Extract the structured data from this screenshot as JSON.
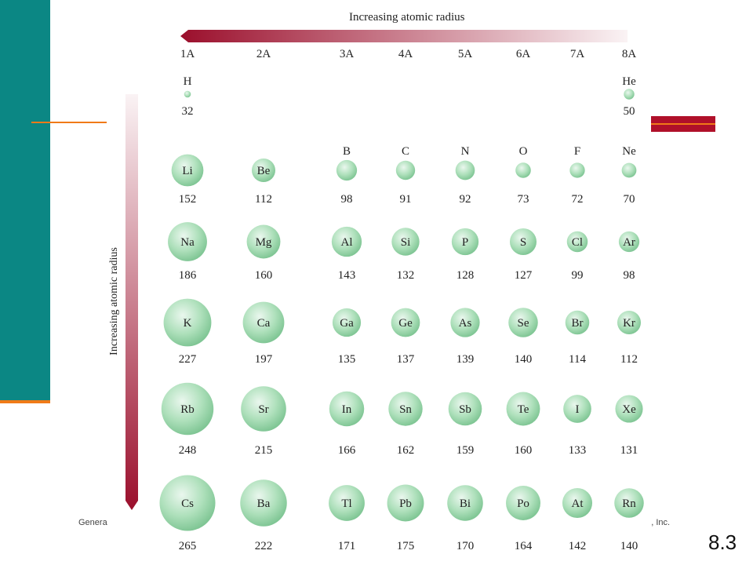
{
  "titles": {
    "top": "Increasing atomic radius",
    "left": "Increasing atomic radius"
  },
  "footer": {
    "left_fragment": "Genera",
    "right_fragment": "on, Inc.",
    "slide_number": "8.3"
  },
  "groups": [
    "1A",
    "2A",
    "3A",
    "4A",
    "5A",
    "6A",
    "7A",
    "8A"
  ],
  "elements": [
    {
      "symbol": "H",
      "radius": 32,
      "row": 1,
      "col": 1
    },
    {
      "symbol": "He",
      "radius": 50,
      "row": 1,
      "col": 8
    },
    {
      "symbol": "Li",
      "radius": 152,
      "row": 2,
      "col": 1
    },
    {
      "symbol": "Be",
      "radius": 112,
      "row": 2,
      "col": 2
    },
    {
      "symbol": "B",
      "radius": 98,
      "row": 2,
      "col": 3
    },
    {
      "symbol": "C",
      "radius": 91,
      "row": 2,
      "col": 4
    },
    {
      "symbol": "N",
      "radius": 92,
      "row": 2,
      "col": 5
    },
    {
      "symbol": "O",
      "radius": 73,
      "row": 2,
      "col": 6
    },
    {
      "symbol": "F",
      "radius": 72,
      "row": 2,
      "col": 7
    },
    {
      "symbol": "Ne",
      "radius": 70,
      "row": 2,
      "col": 8
    },
    {
      "symbol": "Na",
      "radius": 186,
      "row": 3,
      "col": 1
    },
    {
      "symbol": "Mg",
      "radius": 160,
      "row": 3,
      "col": 2
    },
    {
      "symbol": "Al",
      "radius": 143,
      "row": 3,
      "col": 3
    },
    {
      "symbol": "Si",
      "radius": 132,
      "row": 3,
      "col": 4
    },
    {
      "symbol": "P",
      "radius": 128,
      "row": 3,
      "col": 5
    },
    {
      "symbol": "S",
      "radius": 127,
      "row": 3,
      "col": 6
    },
    {
      "symbol": "Cl",
      "radius": 99,
      "row": 3,
      "col": 7
    },
    {
      "symbol": "Ar",
      "radius": 98,
      "row": 3,
      "col": 8
    },
    {
      "symbol": "K",
      "radius": 227,
      "row": 4,
      "col": 1
    },
    {
      "symbol": "Ca",
      "radius": 197,
      "row": 4,
      "col": 2
    },
    {
      "symbol": "Ga",
      "radius": 135,
      "row": 4,
      "col": 3
    },
    {
      "symbol": "Ge",
      "radius": 137,
      "row": 4,
      "col": 4
    },
    {
      "symbol": "As",
      "radius": 139,
      "row": 4,
      "col": 5
    },
    {
      "symbol": "Se",
      "radius": 140,
      "row": 4,
      "col": 6
    },
    {
      "symbol": "Br",
      "radius": 114,
      "row": 4,
      "col": 7
    },
    {
      "symbol": "Kr",
      "radius": 112,
      "row": 4,
      "col": 8
    },
    {
      "symbol": "Rb",
      "radius": 248,
      "row": 5,
      "col": 1
    },
    {
      "symbol": "Sr",
      "radius": 215,
      "row": 5,
      "col": 2
    },
    {
      "symbol": "In",
      "radius": 166,
      "row": 5,
      "col": 3
    },
    {
      "symbol": "Sn",
      "radius": 162,
      "row": 5,
      "col": 4
    },
    {
      "symbol": "Sb",
      "radius": 159,
      "row": 5,
      "col": 5
    },
    {
      "symbol": "Te",
      "radius": 160,
      "row": 5,
      "col": 6
    },
    {
      "symbol": "I",
      "radius": 133,
      "row": 5,
      "col": 7
    },
    {
      "symbol": "Xe",
      "radius": 131,
      "row": 5,
      "col": 8
    },
    {
      "symbol": "Cs",
      "radius": 265,
      "row": 6,
      "col": 1
    },
    {
      "symbol": "Ba",
      "radius": 222,
      "row": 6,
      "col": 2
    },
    {
      "symbol": "Tl",
      "radius": 171,
      "row": 6,
      "col": 3
    },
    {
      "symbol": "Pb",
      "radius": 175,
      "row": 6,
      "col": 4
    },
    {
      "symbol": "Bi",
      "radius": 170,
      "row": 6,
      "col": 5
    },
    {
      "symbol": "Po",
      "radius": 164,
      "row": 6,
      "col": 6
    },
    {
      "symbol": "At",
      "radius": 142,
      "row": 6,
      "col": 7
    },
    {
      "symbol": "Rn",
      "radius": 140,
      "row": 6,
      "col": 8
    }
  ],
  "colors": {
    "teal": "#0b8784",
    "orange": "#f07a18",
    "red": "#b0102a",
    "arrow_dark": "#9b0f2c",
    "sphere_light": "#e6f6ea",
    "sphere_mid": "#a9dcb5",
    "sphere_dark": "#74bf8a"
  }
}
